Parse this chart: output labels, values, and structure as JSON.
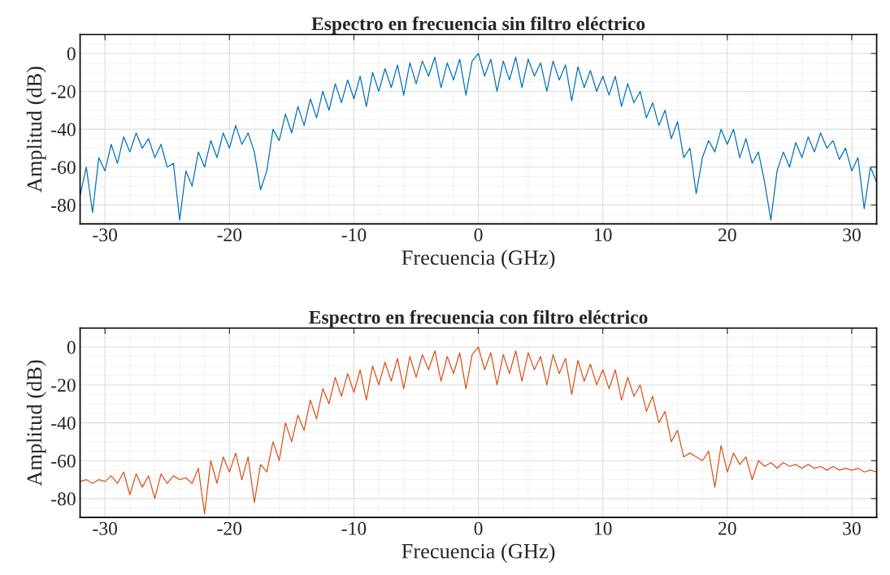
{
  "chart_data": [
    {
      "type": "line",
      "title": "Espectro en frecuencia sin filtro eléctrico",
      "xlabel": "Frecuencia (GHz)",
      "ylabel": "Amplitud (dB)",
      "x": [
        -32,
        -31.5,
        -31,
        -30.5,
        -30,
        -29.5,
        -29,
        -28.5,
        -28,
        -27.5,
        -27,
        -26.5,
        -26,
        -25.5,
        -25,
        -24.5,
        -24,
        -23.5,
        -23,
        -22.5,
        -22,
        -21.5,
        -21,
        -20.5,
        -20,
        -19.5,
        -19,
        -18.5,
        -18,
        -17.5,
        -17,
        -16.5,
        -16,
        -15.5,
        -15,
        -14.5,
        -14,
        -13.5,
        -13,
        -12.5,
        -12,
        -11.5,
        -11,
        -10.5,
        -10,
        -9.5,
        -9,
        -8.5,
        -8,
        -7.5,
        -7,
        -6.5,
        -6,
        -5.5,
        -5,
        -4.5,
        -4,
        -3.5,
        -3,
        -2.5,
        -2,
        -1.5,
        -1,
        -0.5,
        0,
        0.5,
        1,
        1.5,
        2,
        2.5,
        3,
        3.5,
        4,
        4.5,
        5,
        5.5,
        6,
        6.5,
        7,
        7.5,
        8,
        8.5,
        9,
        9.5,
        10,
        10.5,
        11,
        11.5,
        12,
        12.5,
        13,
        13.5,
        14,
        14.5,
        15,
        15.5,
        16,
        16.5,
        17,
        17.5,
        18,
        18.5,
        19,
        19.5,
        20,
        20.5,
        21,
        21.5,
        22,
        22.5,
        23,
        23.5,
        24,
        24.5,
        25,
        25.5,
        26,
        26.5,
        27,
        27.5,
        28,
        28.5,
        29,
        29.5,
        30,
        30.5,
        31,
        31.5,
        32
      ],
      "series": [
        {
          "color": "#0072bd",
          "values": [
            -75,
            -60,
            -84,
            -55,
            -62,
            -48,
            -58,
            -44,
            -52,
            -42,
            -50,
            -45,
            -55,
            -48,
            -60,
            -58,
            -88,
            -62,
            -70,
            -52,
            -60,
            -46,
            -55,
            -42,
            -50,
            -38,
            -48,
            -42,
            -52,
            -72,
            -62,
            -40,
            -46,
            -32,
            -42,
            -28,
            -38,
            -24,
            -34,
            -20,
            -30,
            -16,
            -26,
            -14,
            -24,
            -12,
            -28,
            -10,
            -20,
            -8,
            -18,
            -6,
            -22,
            -5,
            -16,
            -4,
            -12,
            -2,
            -18,
            -5,
            -14,
            -3,
            -22,
            -4,
            0,
            -12,
            -3,
            -20,
            -4,
            -14,
            -2,
            -18,
            -3,
            -12,
            -5,
            -20,
            -4,
            -14,
            -6,
            -25,
            -7,
            -18,
            -9,
            -20,
            -12,
            -22,
            -12,
            -28,
            -16,
            -26,
            -20,
            -34,
            -26,
            -38,
            -30,
            -45,
            -36,
            -55,
            -50,
            -74,
            -55,
            -46,
            -52,
            -40,
            -48,
            -40,
            -55,
            -45,
            -58,
            -52,
            -68,
            -88,
            -62,
            -52,
            -60,
            -47,
            -55,
            -44,
            -52,
            -42,
            -50,
            -46,
            -56,
            -50,
            -62,
            -55,
            -82,
            -60,
            -68
          ]
        }
      ],
      "xlim": [
        -32,
        32
      ],
      "ylim": [
        -90,
        10
      ],
      "xticks": [
        -30,
        -20,
        -10,
        0,
        10,
        20,
        30
      ],
      "yticks": [
        -80,
        -60,
        -40,
        -20,
        0
      ],
      "grid": true
    },
    {
      "type": "line",
      "title": "Espectro en frecuencia con filtro eléctrico",
      "xlabel": "Frecuencia (GHz)",
      "ylabel": "Amplitud (dB)",
      "x": [
        -32,
        -31.5,
        -31,
        -30.5,
        -30,
        -29.5,
        -29,
        -28.5,
        -28,
        -27.5,
        -27,
        -26.5,
        -26,
        -25.5,
        -25,
        -24.5,
        -24,
        -23.5,
        -23,
        -22.5,
        -22,
        -21.5,
        -21,
        -20.5,
        -20,
        -19.5,
        -19,
        -18.5,
        -18,
        -17.5,
        -17,
        -16.5,
        -16,
        -15.5,
        -15,
        -14.5,
        -14,
        -13.5,
        -13,
        -12.5,
        -12,
        -11.5,
        -11,
        -10.5,
        -10,
        -9.5,
        -9,
        -8.5,
        -8,
        -7.5,
        -7,
        -6.5,
        -6,
        -5.5,
        -5,
        -4.5,
        -4,
        -3.5,
        -3,
        -2.5,
        -2,
        -1.5,
        -1,
        -0.5,
        0,
        0.5,
        1,
        1.5,
        2,
        2.5,
        3,
        3.5,
        4,
        4.5,
        5,
        5.5,
        6,
        6.5,
        7,
        7.5,
        8,
        8.5,
        9,
        9.5,
        10,
        10.5,
        11,
        11.5,
        12,
        12.5,
        13,
        13.5,
        14,
        14.5,
        15,
        15.5,
        16,
        16.5,
        17,
        17.5,
        18,
        18.5,
        19,
        19.5,
        20,
        20.5,
        21,
        21.5,
        22,
        22.5,
        23,
        23.5,
        24,
        24.5,
        25,
        25.5,
        26,
        26.5,
        27,
        27.5,
        28,
        28.5,
        29,
        29.5,
        30,
        30.5,
        31,
        31.5,
        32
      ],
      "series": [
        {
          "color": "#d95319",
          "values": [
            -71,
            -70,
            -72,
            -70,
            -71,
            -68,
            -72,
            -66,
            -78,
            -67,
            -74,
            -68,
            -80,
            -67,
            -72,
            -68,
            -70,
            -69,
            -72,
            -64,
            -88,
            -60,
            -72,
            -58,
            -66,
            -56,
            -70,
            -58,
            -82,
            -62,
            -66,
            -50,
            -60,
            -40,
            -50,
            -36,
            -44,
            -28,
            -38,
            -22,
            -30,
            -16,
            -26,
            -14,
            -24,
            -12,
            -28,
            -10,
            -20,
            -8,
            -18,
            -6,
            -22,
            -5,
            -16,
            -4,
            -12,
            -2,
            -18,
            -5,
            -14,
            -3,
            -22,
            -4,
            0,
            -12,
            -3,
            -20,
            -4,
            -14,
            -2,
            -18,
            -3,
            -12,
            -5,
            -20,
            -4,
            -14,
            -6,
            -25,
            -7,
            -18,
            -9,
            -20,
            -12,
            -22,
            -12,
            -28,
            -16,
            -26,
            -20,
            -34,
            -26,
            -40,
            -34,
            -50,
            -44,
            -58,
            -56,
            -58,
            -60,
            -55,
            -74,
            -52,
            -66,
            -56,
            -62,
            -58,
            -70,
            -60,
            -63,
            -61,
            -64,
            -61,
            -63,
            -62,
            -64,
            -62,
            -64,
            -63,
            -65,
            -63,
            -65,
            -64,
            -65,
            -64,
            -66,
            -65,
            -66
          ]
        }
      ],
      "xlim": [
        -32,
        32
      ],
      "ylim": [
        -90,
        10
      ],
      "xticks": [
        -30,
        -20,
        -10,
        0,
        10,
        20,
        30
      ],
      "yticks": [
        -80,
        -60,
        -40,
        -20,
        0
      ],
      "grid": true
    }
  ]
}
